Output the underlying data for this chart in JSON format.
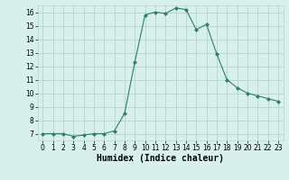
{
  "x": [
    0,
    1,
    2,
    3,
    4,
    5,
    6,
    7,
    8,
    9,
    10,
    11,
    12,
    13,
    14,
    15,
    16,
    17,
    18,
    19,
    20,
    21,
    22,
    23
  ],
  "y": [
    7.0,
    7.0,
    7.0,
    6.8,
    6.9,
    7.0,
    7.0,
    7.2,
    8.5,
    12.3,
    15.8,
    16.0,
    15.9,
    16.3,
    16.2,
    14.7,
    15.1,
    12.9,
    11.0,
    10.4,
    10.0,
    9.8,
    9.6,
    9.4
  ],
  "line_color": "#2e7d6e",
  "marker": "D",
  "marker_size": 2.0,
  "bg_color": "#d8f0ec",
  "grid_color": "#b5d4cf",
  "xlabel": "Humidex (Indice chaleur)",
  "xlim": [
    -0.5,
    23.5
  ],
  "ylim": [
    6.5,
    16.5
  ],
  "yticks": [
    7,
    8,
    9,
    10,
    11,
    12,
    13,
    14,
    15,
    16
  ],
  "xticks": [
    0,
    1,
    2,
    3,
    4,
    5,
    6,
    7,
    8,
    9,
    10,
    11,
    12,
    13,
    14,
    15,
    16,
    17,
    18,
    19,
    20,
    21,
    22,
    23
  ],
  "tick_labelsize": 5.5,
  "xlabel_fontsize": 7.0
}
